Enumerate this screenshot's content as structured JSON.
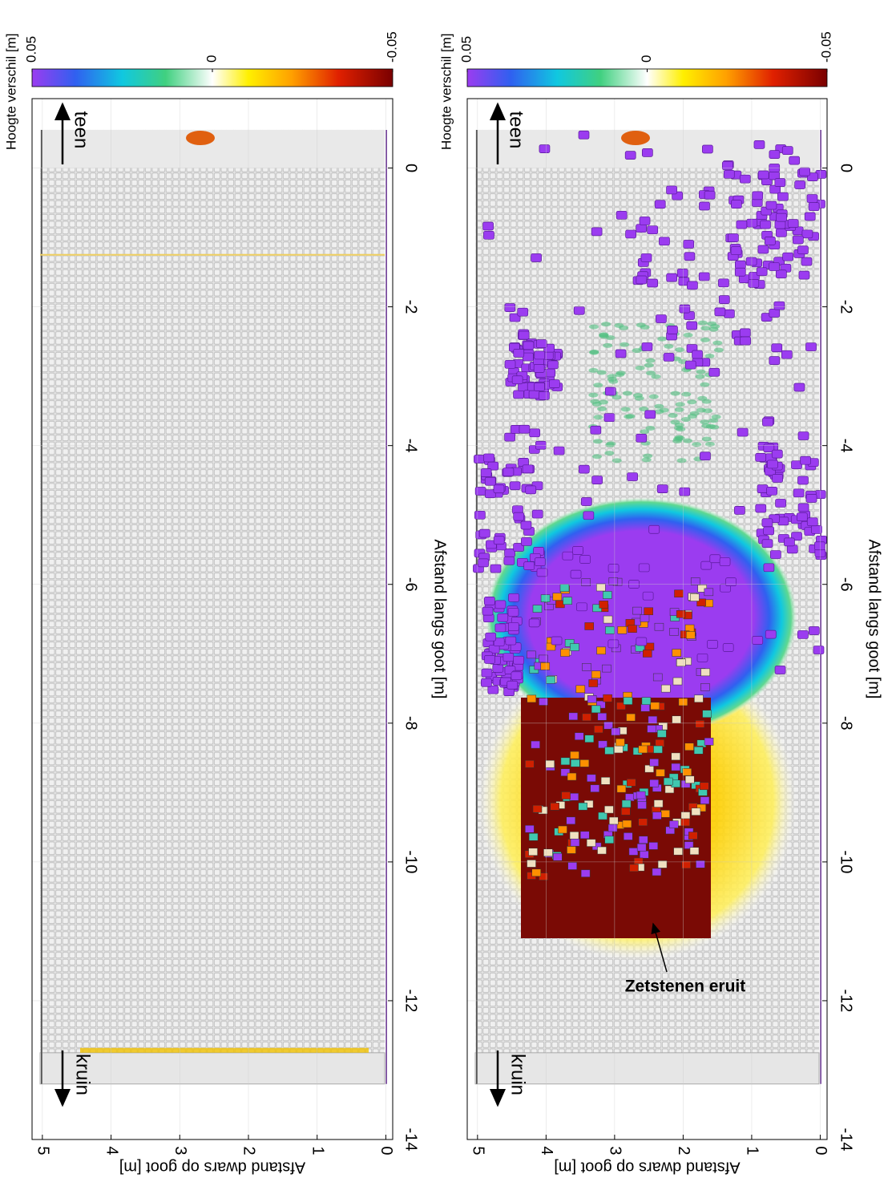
{
  "chart_data": [
    {
      "type": "heatmap",
      "xlabel": "Afstand langs goot [m]",
      "ylabel": "Afstand dwars op goot [m]",
      "xlim": [
        1,
        -14
      ],
      "xticks": [
        0,
        -2,
        -4,
        -6,
        -8,
        -10,
        -12,
        -14
      ],
      "ylim": [
        -0.1,
        5.15
      ],
      "yticks": [
        0,
        1,
        2,
        3,
        4,
        5
      ],
      "grid": true,
      "colorbar": {
        "label": "Hoogte verschil [m]",
        "lim": [
          0.05,
          -0.05
        ],
        "ticks": [
          0.05,
          0,
          -0.05
        ]
      },
      "annotations": [
        "teen",
        "kruin"
      ]
    },
    {
      "type": "heatmap",
      "xlabel": "Afstand langs goot [m]",
      "ylabel": "Afstand dwars op goot [m]",
      "xlim": [
        1,
        -14
      ],
      "xticks": [
        0,
        -2,
        -4,
        -6,
        -8,
        -10,
        -12,
        -14
      ],
      "ylim": [
        -0.1,
        5.15
      ],
      "yticks": [
        0,
        1,
        2,
        3,
        4,
        5
      ],
      "grid": true,
      "colorbar": {
        "label": "Hoogte verschil [m]",
        "lim": [
          0.05,
          -0.05
        ],
        "ticks": [
          0.05,
          0,
          -0.05
        ]
      },
      "annotations": [
        "teen",
        "kruin",
        "Zetstenen eruit"
      ]
    }
  ]
}
